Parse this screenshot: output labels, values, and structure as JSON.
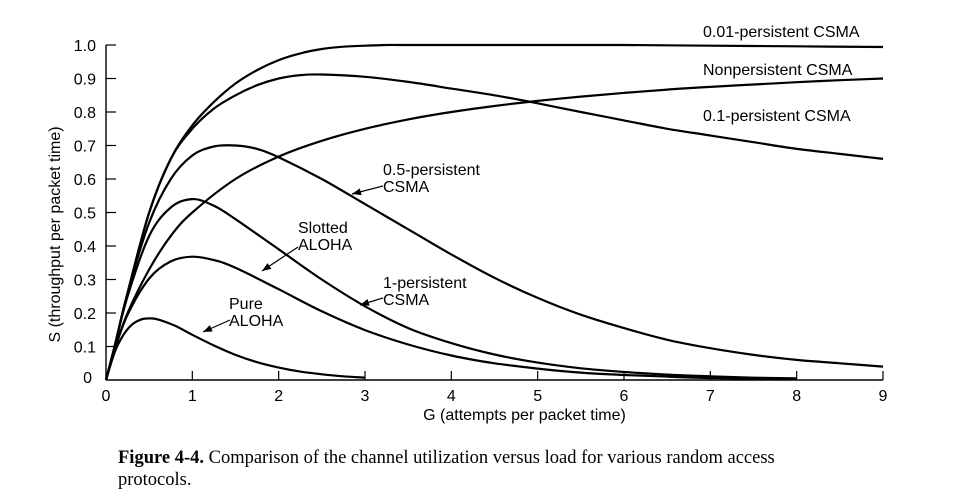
{
  "caption": {
    "figure_number": "Figure 4-4.",
    "text": "Comparison of the channel utilization versus load for various random access protocols."
  },
  "chart_data": {
    "type": "line",
    "title": "",
    "xlabel": "G (attempts per packet time)",
    "ylabel": "S (throughput per packet time)",
    "xlim": [
      0,
      9
    ],
    "ylim": [
      0,
      1.0
    ],
    "xticks": [
      "0",
      "1",
      "2",
      "3",
      "4",
      "5",
      "6",
      "7",
      "8",
      "9"
    ],
    "yticks": [
      "0",
      "0.1",
      "0.2",
      "0.3",
      "0.4",
      "0.5",
      "0.6",
      "0.7",
      "0.8",
      "0.9",
      "1.0"
    ],
    "grid": false,
    "legend": "inline labels",
    "series": [
      {
        "name": "Pure ALOHA",
        "label_lines": [
          "Pure",
          "ALOHA"
        ],
        "x": [
          0,
          0.1,
          0.2,
          0.3,
          0.4,
          0.5,
          0.6,
          0.8,
          1.0,
          1.25,
          1.5,
          1.75,
          2.0,
          2.25,
          2.5,
          2.75,
          3.0
        ],
        "y": [
          0,
          0.082,
          0.134,
          0.165,
          0.18,
          0.184,
          0.181,
          0.162,
          0.135,
          0.103,
          0.075,
          0.053,
          0.037,
          0.025,
          0.017,
          0.011,
          0.007
        ]
      },
      {
        "name": "Slotted ALOHA",
        "label_lines": [
          "Slotted",
          "ALOHA"
        ],
        "x": [
          0,
          0.1,
          0.25,
          0.5,
          0.75,
          1.0,
          1.25,
          1.5,
          2.0,
          2.5,
          3.0,
          3.5,
          4.0,
          4.5,
          5.0,
          5.5,
          6.0,
          6.5,
          7.0,
          7.5,
          8.0
        ],
        "y": [
          0,
          0.09,
          0.195,
          0.303,
          0.354,
          0.368,
          0.358,
          0.335,
          0.271,
          0.205,
          0.149,
          0.106,
          0.073,
          0.05,
          0.034,
          0.022,
          0.015,
          0.01,
          0.006,
          0.004,
          0.003
        ]
      },
      {
        "name": "1-persistent CSMA",
        "label_lines": [
          "1-persistent",
          "CSMA"
        ],
        "x": [
          0,
          0.1,
          0.25,
          0.5,
          0.75,
          1.0,
          1.25,
          1.5,
          2.0,
          2.5,
          3.0,
          3.5,
          4.0,
          4.5,
          5.0,
          5.5,
          6.0,
          6.5,
          7.0,
          7.5,
          8.0
        ],
        "y": [
          0,
          0.1,
          0.25,
          0.43,
          0.515,
          0.54,
          0.52,
          0.48,
          0.39,
          0.3,
          0.22,
          0.155,
          0.11,
          0.076,
          0.052,
          0.035,
          0.024,
          0.016,
          0.011,
          0.007,
          0.005
        ]
      },
      {
        "name": "0.5-persistent CSMA",
        "label_lines": [
          "0.5-persistent",
          "CSMA"
        ],
        "x": [
          0,
          0.1,
          0.25,
          0.5,
          0.75,
          1.0,
          1.25,
          1.5,
          1.75,
          2.0,
          2.5,
          3.0,
          3.5,
          4.0,
          4.5,
          5.0,
          5.5,
          6.0,
          6.5,
          7.0,
          7.5,
          8.0,
          8.5,
          9.0
        ],
        "y": [
          0,
          0.1,
          0.26,
          0.47,
          0.6,
          0.67,
          0.697,
          0.7,
          0.69,
          0.665,
          0.6,
          0.525,
          0.45,
          0.375,
          0.305,
          0.245,
          0.195,
          0.155,
          0.12,
          0.095,
          0.075,
          0.06,
          0.05,
          0.04
        ]
      },
      {
        "name": "Nonpersistent CSMA",
        "label_lines": [
          "Nonpersistent CSMA"
        ],
        "x": [
          0,
          0.1,
          0.25,
          0.5,
          0.75,
          1.0,
          1.5,
          2.0,
          2.5,
          3.0,
          3.5,
          4.0,
          4.5,
          5.0,
          5.5,
          6.0,
          6.5,
          7.0,
          7.5,
          8.0,
          8.5,
          9.0
        ],
        "y": [
          0,
          0.09,
          0.2,
          0.33,
          0.43,
          0.5,
          0.6,
          0.667,
          0.714,
          0.75,
          0.778,
          0.8,
          0.818,
          0.833,
          0.846,
          0.857,
          0.867,
          0.875,
          0.882,
          0.889,
          0.895,
          0.9
        ]
      },
      {
        "name": "0.1-persistent CSMA",
        "label_lines": [
          "0.1-persistent CSMA"
        ],
        "x": [
          0,
          0.1,
          0.25,
          0.5,
          0.75,
          1.0,
          1.25,
          1.5,
          1.75,
          2.0,
          2.25,
          2.5,
          3.0,
          3.5,
          4.0,
          4.5,
          5.0,
          5.5,
          6.0,
          6.5,
          7.0,
          7.5,
          8.0,
          8.5,
          9.0
        ],
        "y": [
          0,
          0.1,
          0.26,
          0.5,
          0.66,
          0.75,
          0.81,
          0.85,
          0.88,
          0.9,
          0.91,
          0.912,
          0.905,
          0.89,
          0.87,
          0.85,
          0.826,
          0.8,
          0.775,
          0.75,
          0.73,
          0.71,
          0.69,
          0.675,
          0.66
        ]
      },
      {
        "name": "0.01-persistent CSMA",
        "label_lines": [
          "0.01-persistent CSMA"
        ],
        "x": [
          0,
          0.1,
          0.25,
          0.5,
          0.75,
          1.0,
          1.25,
          1.5,
          1.75,
          2.0,
          2.25,
          2.5,
          2.75,
          3.0,
          3.25,
          3.5,
          4.0,
          5.0,
          6.0,
          7.0,
          8.0,
          9.0
        ],
        "y": [
          0,
          0.1,
          0.26,
          0.5,
          0.66,
          0.76,
          0.83,
          0.885,
          0.925,
          0.955,
          0.975,
          0.988,
          0.995,
          0.998,
          1.0,
          1.0,
          1.0,
          1.0,
          1.0,
          0.998,
          0.996,
          0.994
        ]
      }
    ]
  }
}
